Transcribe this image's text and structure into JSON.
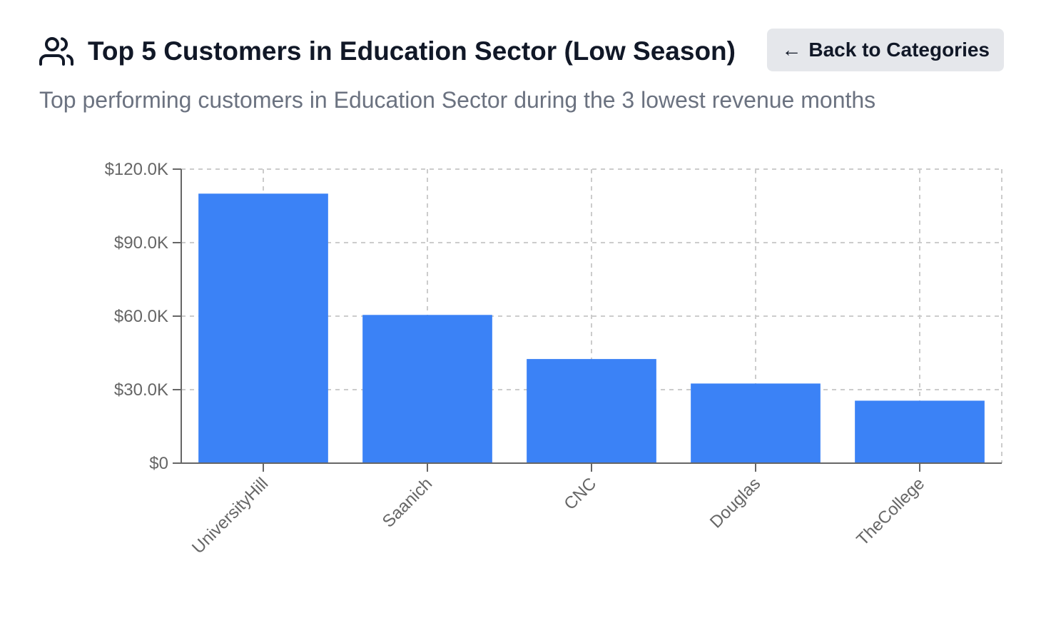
{
  "header": {
    "icon": "users-icon",
    "title": "Top 5 Customers in Education Sector (Low Season)",
    "back_button": {
      "arrow": "←",
      "label": "Back to Categories"
    }
  },
  "subtitle": "Top performing customers in Education Sector during the 3 lowest revenue months",
  "colors": {
    "bar": "#3b82f6",
    "grid": "#cccccc",
    "axis": "#666666"
  },
  "chart_data": {
    "type": "bar",
    "categories": [
      "UniversityHill",
      "Saanich",
      "CNC",
      "Douglas",
      "TheCollege"
    ],
    "values": [
      110000,
      60500,
      42500,
      32500,
      25500
    ],
    "title": "",
    "xlabel": "",
    "ylabel": "",
    "ylim": [
      0,
      120000
    ],
    "yticks": [
      0,
      30000,
      60000,
      90000,
      120000
    ],
    "ytick_labels": [
      "$0",
      "$30.0K",
      "$60.0K",
      "$90.0K",
      "$120.0K"
    ],
    "grid": true,
    "legend": "none"
  }
}
